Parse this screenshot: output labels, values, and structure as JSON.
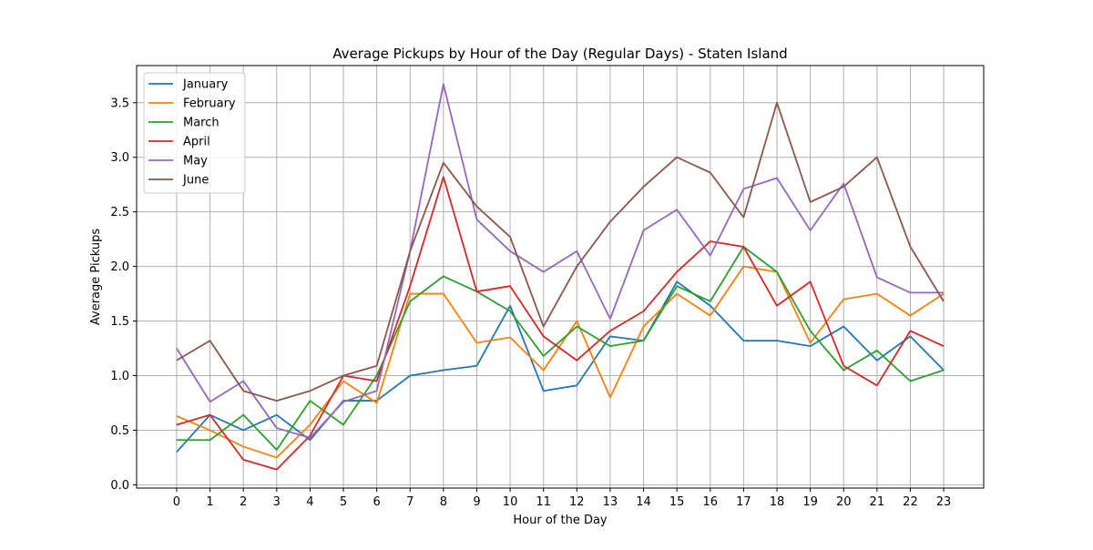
{
  "chart_data": {
    "type": "line",
    "title": "Average Pickups by Hour of the Day (Regular Days) - Staten Island",
    "xlabel": "Hour of the Day",
    "ylabel": "Average Pickups",
    "x": [
      0,
      1,
      2,
      3,
      4,
      5,
      6,
      7,
      8,
      9,
      10,
      11,
      12,
      13,
      14,
      15,
      16,
      17,
      18,
      19,
      20,
      21,
      22,
      23
    ],
    "xlim": [
      -1.2,
      24.2
    ],
    "ylim": [
      -0.03,
      3.84
    ],
    "y_ticks": [
      0.0,
      0.5,
      1.0,
      1.5,
      2.0,
      2.5,
      3.0,
      3.5
    ],
    "y_tick_labels": [
      "0.0",
      "0.5",
      "1.0",
      "1.5",
      "2.0",
      "2.5",
      "3.0",
      "3.5"
    ],
    "grid": true,
    "legend_position": "top-left",
    "series": [
      {
        "name": "January",
        "color": "#1f77b4",
        "values": [
          0.3,
          0.64,
          0.5,
          0.64,
          0.41,
          0.77,
          0.77,
          1.0,
          1.05,
          1.09,
          1.64,
          0.86,
          0.91,
          1.36,
          1.32,
          1.86,
          1.64,
          1.32,
          1.32,
          1.27,
          1.45,
          1.14,
          1.36,
          1.05
        ]
      },
      {
        "name": "February",
        "color": "#ff7f0e",
        "values": [
          0.63,
          0.5,
          0.35,
          0.25,
          0.55,
          0.95,
          0.75,
          1.75,
          1.75,
          1.3,
          1.35,
          1.05,
          1.5,
          0.8,
          1.45,
          1.75,
          1.55,
          2.0,
          1.95,
          1.3,
          1.7,
          1.75,
          1.55,
          1.75
        ]
      },
      {
        "name": "March",
        "color": "#2ca02c",
        "values": [
          0.41,
          0.41,
          0.64,
          0.32,
          0.77,
          0.55,
          1.0,
          1.68,
          1.91,
          1.77,
          1.59,
          1.18,
          1.45,
          1.27,
          1.32,
          1.82,
          1.68,
          2.18,
          1.95,
          1.41,
          1.05,
          1.23,
          0.95,
          1.05
        ]
      },
      {
        "name": "April",
        "color": "#d62728",
        "values": [
          0.55,
          0.64,
          0.23,
          0.14,
          0.45,
          1.0,
          0.95,
          1.82,
          2.82,
          1.77,
          1.82,
          1.36,
          1.14,
          1.41,
          1.59,
          1.95,
          2.23,
          2.18,
          1.64,
          1.86,
          1.09,
          0.91,
          1.41,
          1.27
        ]
      },
      {
        "name": "May",
        "color": "#9467bd",
        "values": [
          1.25,
          0.76,
          0.95,
          0.52,
          0.43,
          0.76,
          0.86,
          2.14,
          3.67,
          2.43,
          2.14,
          1.95,
          2.14,
          1.52,
          2.33,
          2.52,
          2.1,
          2.71,
          2.81,
          2.33,
          2.76,
          1.9,
          1.76,
          1.76
        ]
      },
      {
        "name": "June",
        "color": "#8c564b",
        "values": [
          1.14,
          1.32,
          0.86,
          0.77,
          0.86,
          1.0,
          1.09,
          2.14,
          2.95,
          2.55,
          2.27,
          1.45,
          2.0,
          2.41,
          2.73,
          3.0,
          2.86,
          2.45,
          3.5,
          2.59,
          2.73,
          3.0,
          2.18,
          1.68
        ]
      }
    ]
  }
}
